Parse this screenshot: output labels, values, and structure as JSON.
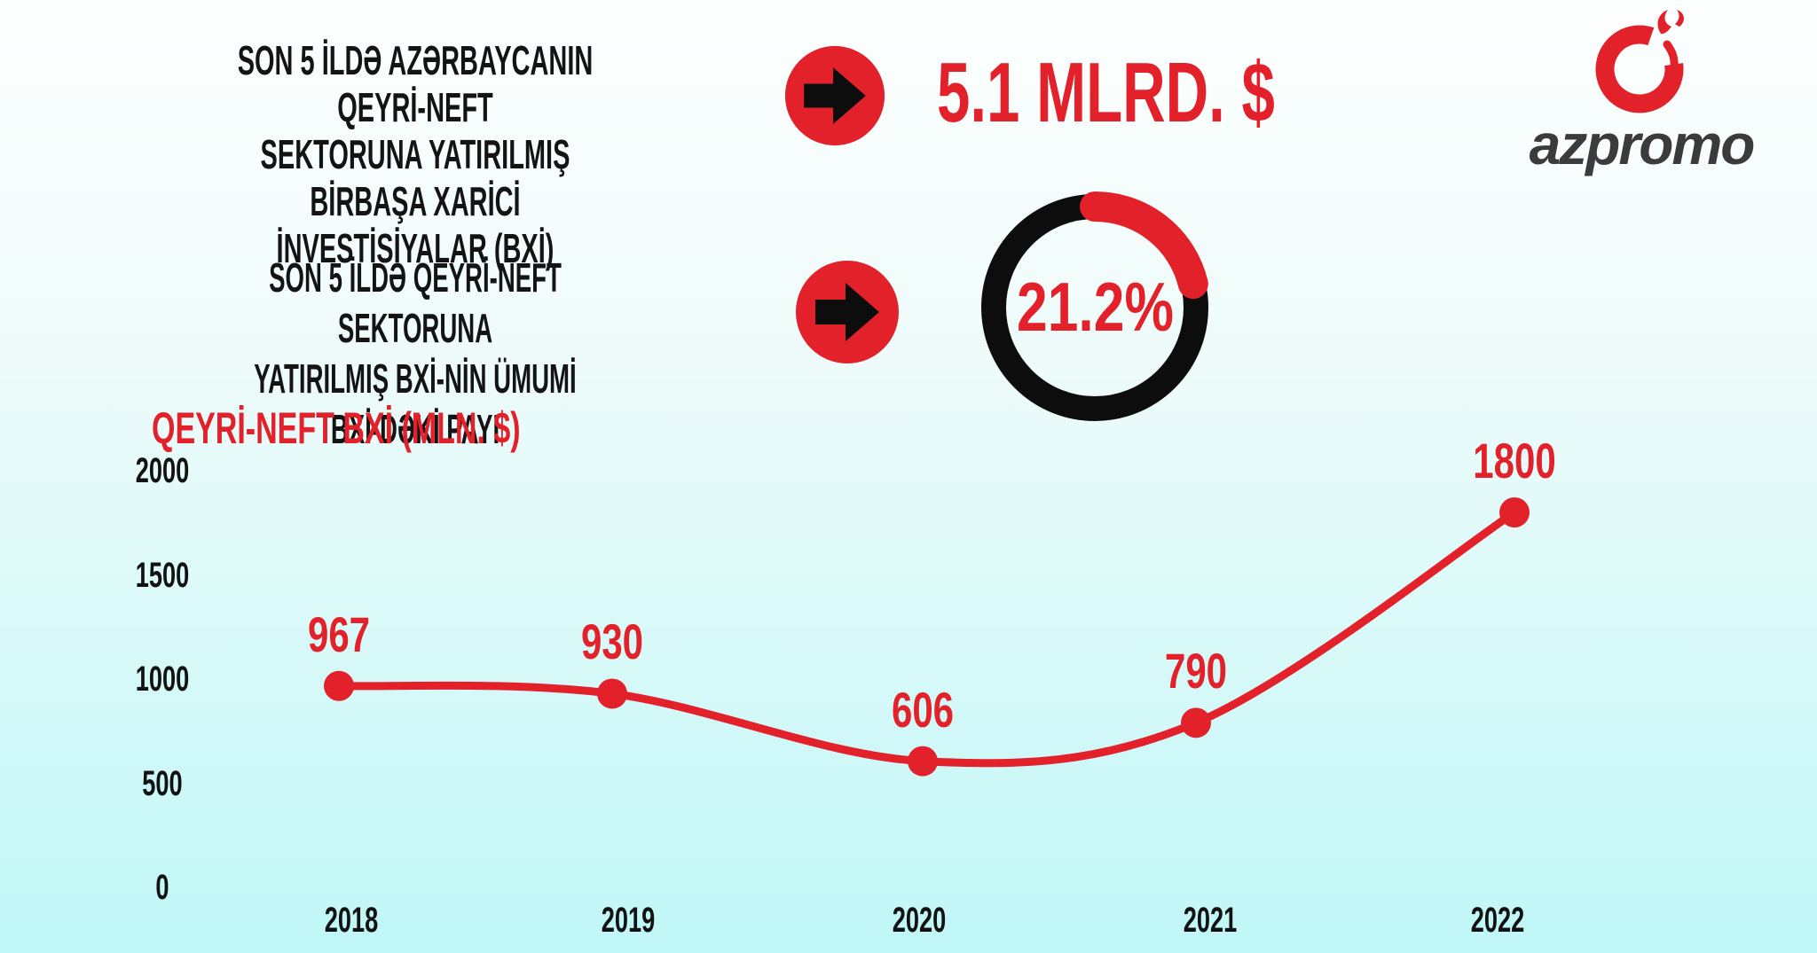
{
  "colors": {
    "red": "#e2212b",
    "black": "#0d0d0d",
    "heading_ink": "#141414",
    "logo_text_color": "#3b3b3b",
    "background_top": "#fdfffe",
    "background_bottom": "#c0f7f7"
  },
  "header": {
    "stat1": {
      "lines": [
        "SON 5 İLDƏ AZƏRBAYCANIN QEYRİ-NEFT",
        "SEKTORUNA YATIRILMIŞ BİRBAŞA XARİCİ",
        "İNVESTİSİYALAR (BXİ)"
      ],
      "value": "5.1 MLRD. $"
    },
    "stat2": {
      "lines": [
        "SON 5 İLDƏ QEYRİ-NEFT SEKTORUNA",
        "YATIRILMIŞ BXİ-NİN ÜMUMİ BXİ-DƏKİ PAYI"
      ],
      "value": "21.2%",
      "percent": 21.2
    },
    "logo": {
      "text": "azpromo"
    }
  },
  "chart_data": {
    "type": "line",
    "title": "QEYRİ-NEFT BXİ (MLN. $)",
    "categories": [
      "2018",
      "2019",
      "2020",
      "2021",
      "2022"
    ],
    "values": [
      967,
      930,
      606,
      790,
      1800
    ],
    "data_labels": [
      "967",
      "930",
      "606",
      "790",
      "1800"
    ],
    "yticks": [
      2000,
      1500,
      1000,
      500,
      0
    ],
    "ylim": [
      0,
      2000
    ],
    "xlabel": "",
    "ylabel": "QEYRİ-NEFT BXİ (MLN. $)",
    "grid": false,
    "legend": "none",
    "line_color": "#e2212b",
    "marker": "circle"
  }
}
